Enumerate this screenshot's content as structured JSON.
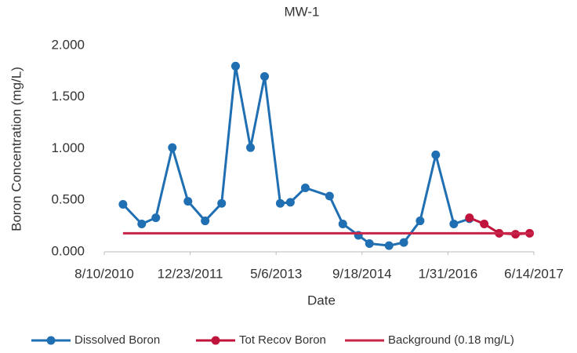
{
  "chart_data": {
    "type": "line",
    "title": "MW-1",
    "x_label": "Date",
    "y_label": "Boron Concentration (mg/L)",
    "xlim": [
      "2010-08-10",
      "2017-06-14"
    ],
    "xticks": [
      {
        "value": "2010-08-10",
        "label": "8/10/2010"
      },
      {
        "value": "2011-12-23",
        "label": "12/23/2011"
      },
      {
        "value": "2013-05-06",
        "label": "5/6/2013"
      },
      {
        "value": "2014-09-18",
        "label": "9/18/2014"
      },
      {
        "value": "2016-01-31",
        "label": "1/31/2016"
      },
      {
        "value": "2017-06-14",
        "label": "6/14/2017"
      }
    ],
    "ylim": [
      0,
      2
    ],
    "yticks": [
      {
        "value": 0,
        "label": "0.000"
      },
      {
        "value": 0.5,
        "label": "0.500"
      },
      {
        "value": 1,
        "label": "1.000"
      },
      {
        "value": 1.5,
        "label": "1.500"
      },
      {
        "value": 2,
        "label": "2.000"
      }
    ],
    "grid": false,
    "legend": "bottom",
    "series": [
      {
        "name": "Dissolved Boron",
        "color": "#1f6fb2",
        "marker": true,
        "x": [
          "2010-11-27",
          "2011-03-16",
          "2011-06-06",
          "2011-09-10",
          "2011-12-10",
          "2012-03-19",
          "2012-06-23",
          "2012-09-12",
          "2012-12-08",
          "2013-02-28",
          "2013-05-30",
          "2013-07-28",
          "2013-10-23",
          "2014-03-13",
          "2014-05-29",
          "2014-08-28",
          "2014-10-31",
          "2015-02-22",
          "2015-05-19",
          "2015-08-22",
          "2015-11-21",
          "2016-03-05",
          "2016-06-04"
        ],
        "values": [
          0.46,
          0.27,
          0.33,
          1.01,
          0.49,
          0.3,
          0.47,
          1.8,
          1.01,
          1.7,
          0.47,
          0.48,
          0.62,
          0.54,
          0.27,
          0.16,
          0.08,
          0.06,
          0.09,
          0.3,
          0.94,
          0.27,
          0.32
        ]
      },
      {
        "name": "Tot Recov Boron",
        "color": "#c0143c",
        "marker": true,
        "x": [
          "2016-06-04",
          "2016-08-29",
          "2016-11-24",
          "2017-02-27",
          "2017-05-20"
        ],
        "values": [
          0.33,
          0.27,
          0.18,
          0.17,
          0.18
        ]
      },
      {
        "name": "Background (0.18 mg/L)",
        "color": "#c8254a",
        "marker": false,
        "x": [
          "2010-11-27",
          "2017-06-14"
        ],
        "values": [
          0.18,
          0.18
        ]
      }
    ]
  }
}
